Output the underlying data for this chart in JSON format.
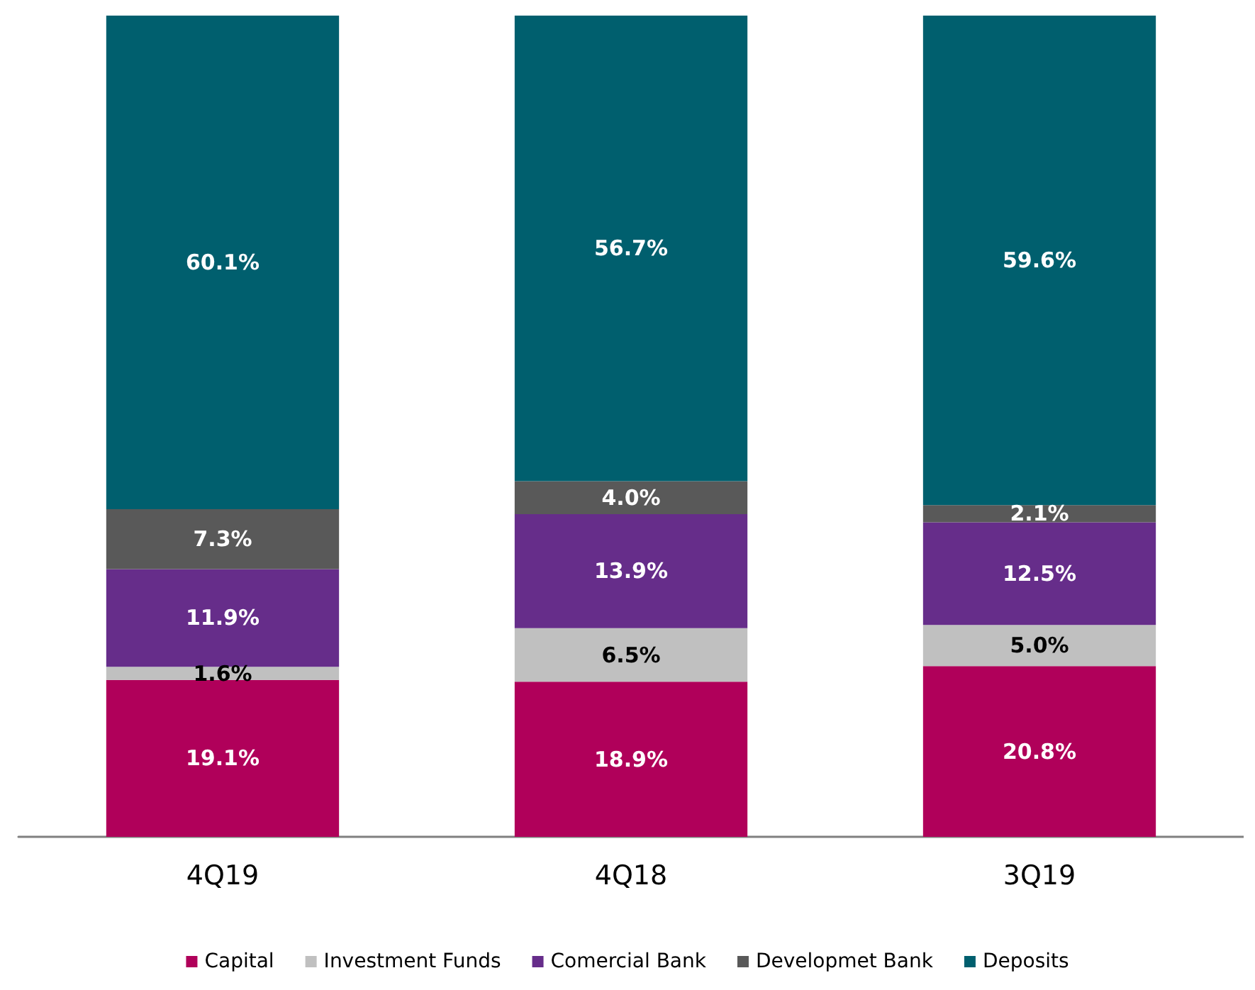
{
  "chart_data": {
    "type": "bar",
    "stacked": true,
    "categories": [
      "4Q19",
      "4Q18",
      "3Q19"
    ],
    "series": [
      {
        "name": "Capital",
        "color": "#b0005a",
        "values": [
          19.1,
          18.9,
          20.8
        ],
        "value_labels": [
          "19.1%",
          "18.9%",
          "20.8%"
        ]
      },
      {
        "name": "Investment Funds",
        "color": "#c0c0c0",
        "values": [
          1.6,
          6.5,
          5.0
        ],
        "value_labels": [
          "1.6%",
          "6.5%",
          "5.0%"
        ]
      },
      {
        "name": "Comercial Bank",
        "color": "#662d8a",
        "values": [
          11.9,
          13.9,
          12.5
        ],
        "value_labels": [
          "11.9%",
          "13.9%",
          "12.5%"
        ]
      },
      {
        "name": "Developmet Bank",
        "color": "#595959",
        "values": [
          7.3,
          4.0,
          2.1
        ],
        "value_labels": [
          "7.3%",
          "4.0%",
          "2.1%"
        ]
      },
      {
        "name": "Deposits",
        "color": "#005f6e",
        "values": [
          60.1,
          56.7,
          59.6
        ],
        "value_labels": [
          "60.1%",
          "56.7%",
          "59.6%"
        ]
      }
    ],
    "legend": "bottom",
    "grid": false
  }
}
